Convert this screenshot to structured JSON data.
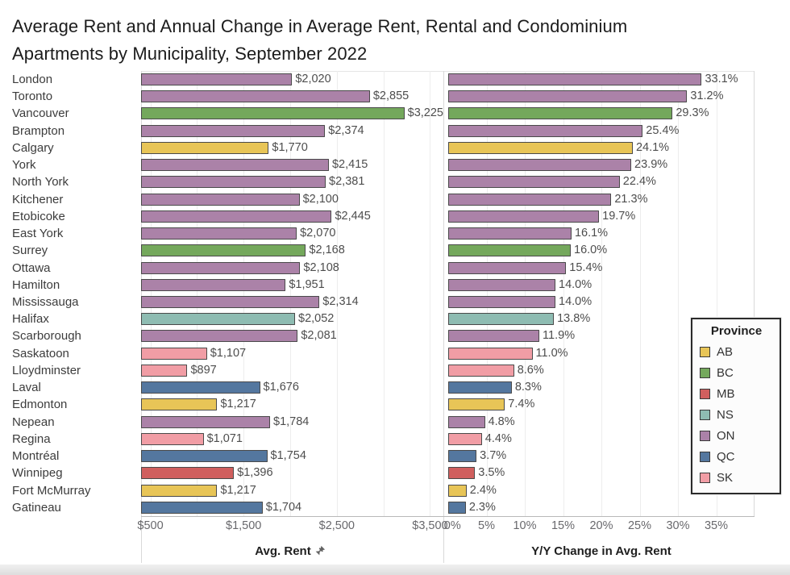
{
  "title": {
    "line1": "Average Rent and Annual Change in Average Rent, Rental and Condominium",
    "line2": "Apartments by Municipality, September 2022"
  },
  "chart_data": {
    "type": "bar",
    "orientation": "horizontal",
    "categories": [
      "London",
      "Toronto",
      "Vancouver",
      "Brampton",
      "Calgary",
      "York",
      "North York",
      "Kitchener",
      "Etobicoke",
      "East York",
      "Surrey",
      "Ottawa",
      "Hamilton",
      "Mississauga",
      "Halifax",
      "Scarborough",
      "Saskatoon",
      "Lloydminster",
      "Laval",
      "Edmonton",
      "Nepean",
      "Regina",
      "Montréal",
      "Winnipeg",
      "Fort McMurray",
      "Gatineau"
    ],
    "provinces": [
      "ON",
      "ON",
      "BC",
      "ON",
      "AB",
      "ON",
      "ON",
      "ON",
      "ON",
      "ON",
      "BC",
      "ON",
      "ON",
      "ON",
      "NS",
      "ON",
      "SK",
      "SK",
      "QC",
      "AB",
      "ON",
      "SK",
      "QC",
      "MB",
      "AB",
      "QC"
    ],
    "series": [
      {
        "name": "Avg. Rent",
        "values": [
          2020,
          2855,
          3225,
          2374,
          1770,
          2415,
          2381,
          2100,
          2445,
          2070,
          2168,
          2108,
          1951,
          2314,
          2052,
          2081,
          1107,
          897,
          1676,
          1217,
          1784,
          1071,
          1754,
          1396,
          1217,
          1704
        ],
        "labels": [
          "$2,020",
          "$2,855",
          "$3,225",
          "$2,374",
          "$1,770",
          "$2,415",
          "$2,381",
          "$2,100",
          "$2,445",
          "$2,070",
          "$2,168",
          "$2,108",
          "$1,951",
          "$2,314",
          "$2,052",
          "$2,081",
          "$1,107",
          "$897",
          "$1,676",
          "$1,217",
          "$1,784",
          "$1,071",
          "$1,754",
          "$1,396",
          "$1,217",
          "$1,704"
        ]
      },
      {
        "name": "Y/Y Change in Avg. Rent",
        "values": [
          33.1,
          31.2,
          29.3,
          25.4,
          24.1,
          23.9,
          22.4,
          21.3,
          19.7,
          16.1,
          16.0,
          15.4,
          14.0,
          14.0,
          13.8,
          11.9,
          11.0,
          8.6,
          8.3,
          7.4,
          4.8,
          4.4,
          3.7,
          3.5,
          2.4,
          2.3
        ],
        "labels": [
          "33.1%",
          "31.2%",
          "29.3%",
          "25.4%",
          "24.1%",
          "23.9%",
          "22.4%",
          "21.3%",
          "19.7%",
          "16.1%",
          "16.0%",
          "15.4%",
          "14.0%",
          "14.0%",
          "13.8%",
          "11.9%",
          "11.0%",
          "8.6%",
          "8.3%",
          "7.4%",
          "4.8%",
          "4.4%",
          "3.7%",
          "3.5%",
          "2.4%",
          "2.3%"
        ]
      }
    ],
    "rent_axis": {
      "title": "Avg. Rent",
      "domain": [
        400,
        3600
      ],
      "grid_step": 500,
      "ticks": [
        {
          "label": "$500",
          "value": 500
        },
        {
          "label": "$1,500",
          "value": 1500
        },
        {
          "label": "$2,500",
          "value": 2500
        },
        {
          "label": "$3,500",
          "value": 3500
        }
      ]
    },
    "pct_axis": {
      "title": "Y/Y Change in Avg. Rent",
      "domain": [
        0,
        40
      ],
      "grid_step": 5,
      "ticks": [
        {
          "label": "0%",
          "value": 0
        },
        {
          "label": "5%",
          "value": 5
        },
        {
          "label": "10%",
          "value": 10
        },
        {
          "label": "15%",
          "value": 15
        },
        {
          "label": "20%",
          "value": 20
        },
        {
          "label": "25%",
          "value": 25
        },
        {
          "label": "30%",
          "value": 30
        },
        {
          "label": "35%",
          "value": 35
        }
      ]
    },
    "legend": {
      "title": "Province",
      "entries": [
        {
          "label": "AB",
          "color": "#e8c557"
        },
        {
          "label": "BC",
          "color": "#74a85c"
        },
        {
          "label": "MB",
          "color": "#d05f5e"
        },
        {
          "label": "NS",
          "color": "#8ebcb2"
        },
        {
          "label": "ON",
          "color": "#ab82a8"
        },
        {
          "label": "QC",
          "color": "#54779f"
        },
        {
          "label": "SK",
          "color": "#f19da5"
        }
      ]
    }
  }
}
